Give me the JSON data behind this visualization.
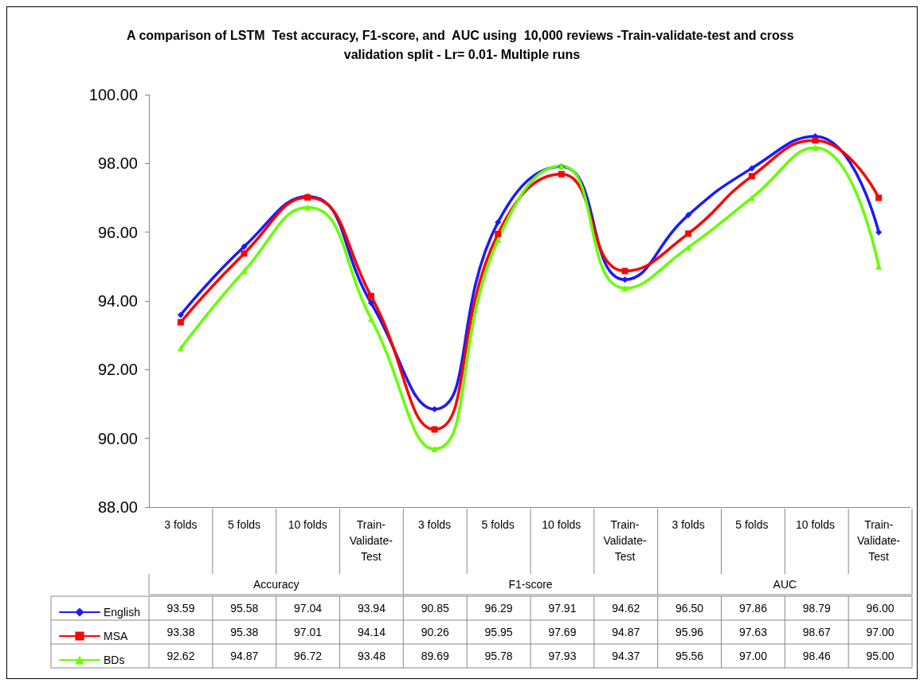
{
  "chart_data": {
    "type": "line",
    "title": "A comparison of LSTM  Test accuracy, F1-score, and  AUC using  10,000 reviews -Train-validate-test and cross validation split - Lr= 0.01- Multiple runs",
    "categories": [
      "3 folds",
      "5 folds",
      "10 folds",
      "Train-Validate-Test",
      "3 folds",
      "5 folds",
      "10 folds",
      "Train-Validate-Test",
      "3 folds",
      "5 folds",
      "10 folds",
      "Train-Validate-Test"
    ],
    "annotations": [
      "Accuracy",
      "F1-score",
      "AUC"
    ],
    "series": [
      {
        "name": "English",
        "color": "#1a1aff",
        "marker": "diamond",
        "values": [
          93.59,
          95.58,
          97.04,
          93.94,
          90.85,
          96.29,
          97.91,
          94.62,
          96.5,
          97.86,
          98.79,
          96.0
        ],
        "value_labels": [
          "93.59",
          "95.58",
          "97.04",
          "93.94",
          "90.85",
          "96.29",
          "97.91",
          "94.62",
          "96.50",
          "97.86",
          "98.79",
          "96.00"
        ]
      },
      {
        "name": "MSA",
        "color": "#ff0000",
        "marker": "square",
        "values": [
          93.38,
          95.38,
          97.01,
          94.14,
          90.26,
          95.95,
          97.69,
          94.87,
          95.96,
          97.63,
          98.67,
          97.0
        ],
        "value_labels": [
          "93.38",
          "95.38",
          "97.01",
          "94.14",
          "90.26",
          "95.95",
          "97.69",
          "94.87",
          "95.96",
          "97.63",
          "98.67",
          "97.00"
        ]
      },
      {
        "name": "BDs",
        "color": "#66ff00",
        "marker": "triangle",
        "values": [
          92.62,
          94.87,
          96.72,
          93.48,
          89.69,
          95.78,
          97.93,
          94.37,
          95.56,
          97.0,
          98.46,
          95.0
        ],
        "value_labels": [
          "92.62",
          "94.87",
          "96.72",
          "93.48",
          "89.69",
          "95.78",
          "97.93",
          "94.37",
          "95.56",
          "97.00",
          "98.46",
          "95.00"
        ]
      }
    ],
    "ylim": [
      88,
      100
    ],
    "yticks": [
      {
        "value": 88,
        "label": "88.00"
      },
      {
        "value": 90,
        "label": "90.00"
      },
      {
        "value": 92,
        "label": "92.00"
      },
      {
        "value": 94,
        "label": "94.00"
      },
      {
        "value": 96,
        "label": "96.00"
      },
      {
        "value": 98,
        "label": "98.00"
      },
      {
        "value": 100,
        "label": "100.00"
      }
    ],
    "grid": false,
    "legend": "bottom left",
    "line_style": "solid"
  }
}
